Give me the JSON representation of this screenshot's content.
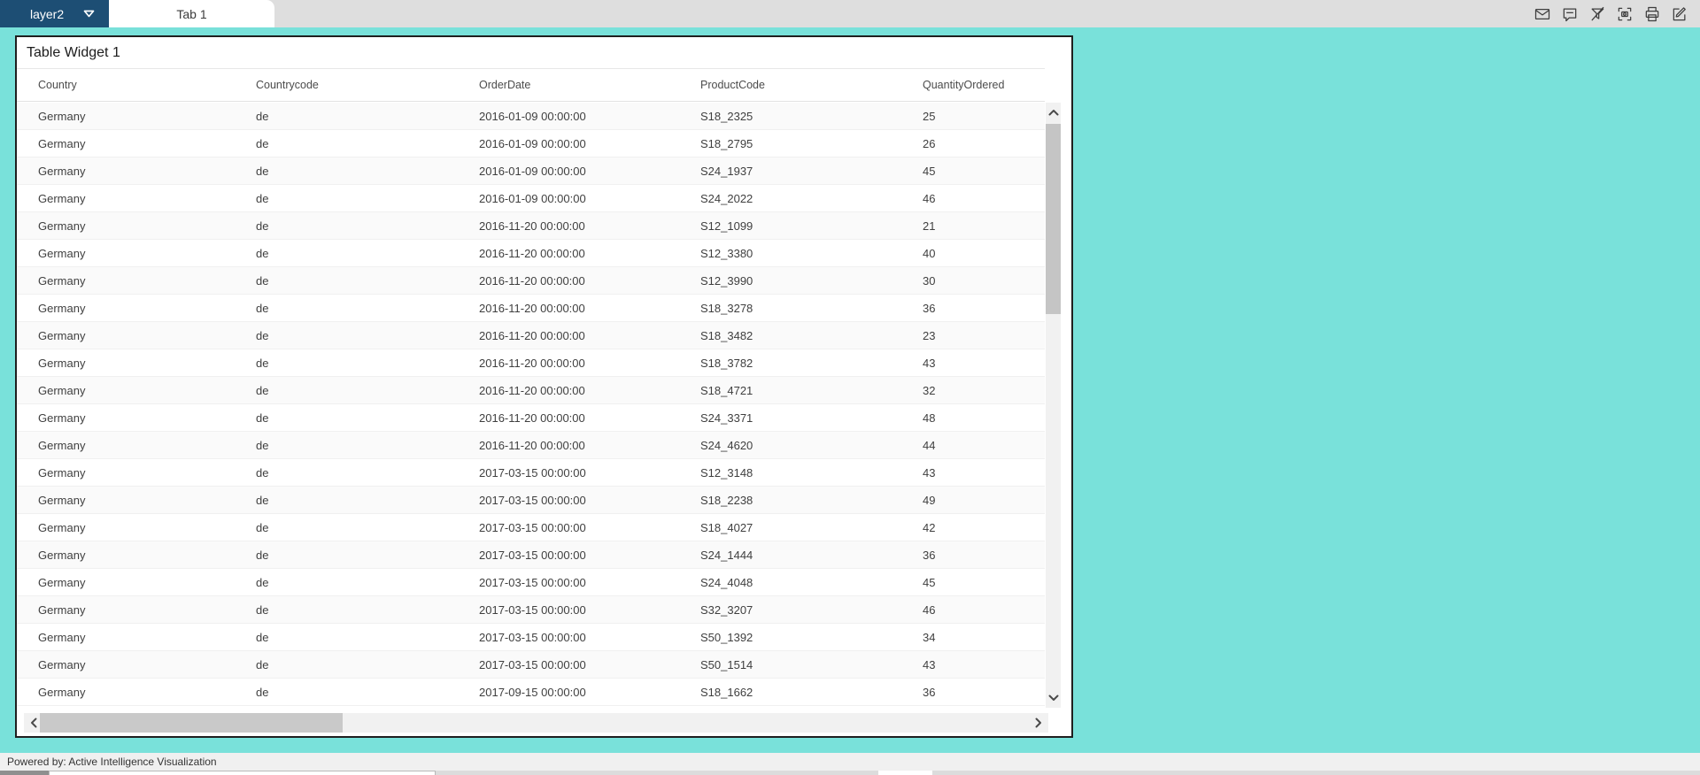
{
  "colors": {
    "background": "#79e1da",
    "layer_tab": "#1d4e74",
    "tab_bar": "#dedede",
    "widget_border": "#1f1f1f",
    "scroll_track": "#f1f1f1",
    "scroll_thumb": "#c5c5c5",
    "footer_bg": "#f0f0f0"
  },
  "tab_bar": {
    "layer_label": "layer2",
    "tabs": [
      {
        "label": "Tab 1",
        "active": true
      }
    ],
    "icons": [
      "mail-icon",
      "comment-icon",
      "clear-filter-icon",
      "snapshot-icon",
      "print-icon",
      "edit-icon"
    ]
  },
  "widget": {
    "title": "Table Widget 1",
    "columns": [
      "Country",
      "Countrycode",
      "OrderDate",
      "ProductCode",
      "QuantityOrdered"
    ],
    "rows": [
      [
        "Germany",
        "de",
        "2016-01-09 00:00:00",
        "S18_2325",
        "25"
      ],
      [
        "Germany",
        "de",
        "2016-01-09 00:00:00",
        "S18_2795",
        "26"
      ],
      [
        "Germany",
        "de",
        "2016-01-09 00:00:00",
        "S24_1937",
        "45"
      ],
      [
        "Germany",
        "de",
        "2016-01-09 00:00:00",
        "S24_2022",
        "46"
      ],
      [
        "Germany",
        "de",
        "2016-11-20 00:00:00",
        "S12_1099",
        "21"
      ],
      [
        "Germany",
        "de",
        "2016-11-20 00:00:00",
        "S12_3380",
        "40"
      ],
      [
        "Germany",
        "de",
        "2016-11-20 00:00:00",
        "S12_3990",
        "30"
      ],
      [
        "Germany",
        "de",
        "2016-11-20 00:00:00",
        "S18_3278",
        "36"
      ],
      [
        "Germany",
        "de",
        "2016-11-20 00:00:00",
        "S18_3482",
        "23"
      ],
      [
        "Germany",
        "de",
        "2016-11-20 00:00:00",
        "S18_3782",
        "43"
      ],
      [
        "Germany",
        "de",
        "2016-11-20 00:00:00",
        "S18_4721",
        "32"
      ],
      [
        "Germany",
        "de",
        "2016-11-20 00:00:00",
        "S24_3371",
        "48"
      ],
      [
        "Germany",
        "de",
        "2016-11-20 00:00:00",
        "S24_4620",
        "44"
      ],
      [
        "Germany",
        "de",
        "2017-03-15 00:00:00",
        "S12_3148",
        "43"
      ],
      [
        "Germany",
        "de",
        "2017-03-15 00:00:00",
        "S18_2238",
        "49"
      ],
      [
        "Germany",
        "de",
        "2017-03-15 00:00:00",
        "S18_4027",
        "42"
      ],
      [
        "Germany",
        "de",
        "2017-03-15 00:00:00",
        "S24_1444",
        "36"
      ],
      [
        "Germany",
        "de",
        "2017-03-15 00:00:00",
        "S24_4048",
        "45"
      ],
      [
        "Germany",
        "de",
        "2017-03-15 00:00:00",
        "S32_3207",
        "46"
      ],
      [
        "Germany",
        "de",
        "2017-03-15 00:00:00",
        "S50_1392",
        "34"
      ],
      [
        "Germany",
        "de",
        "2017-03-15 00:00:00",
        "S50_1514",
        "43"
      ],
      [
        "Germany",
        "de",
        "2017-09-15 00:00:00",
        "S18_1662",
        "36"
      ]
    ]
  },
  "footer": {
    "powered_by": "Powered by: Active Intelligence Visualization"
  }
}
